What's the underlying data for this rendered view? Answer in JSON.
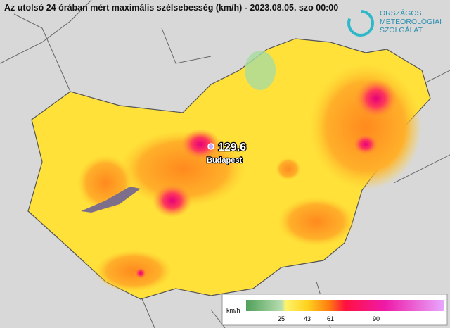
{
  "header": {
    "title": "Az utolsó 24 órában mért maximális szélsebesség (km/h) - 2023.08.05. szo 00:00"
  },
  "logo": {
    "lines": [
      "ORSZÁGOS",
      "METEOROLÓGIAI",
      "SZOLGÁLAT"
    ]
  },
  "station": {
    "value": 129.6,
    "label": "Budapest"
  },
  "legend": {
    "unit": "km/h",
    "ticks": [
      25,
      43,
      61,
      90
    ]
  }
}
